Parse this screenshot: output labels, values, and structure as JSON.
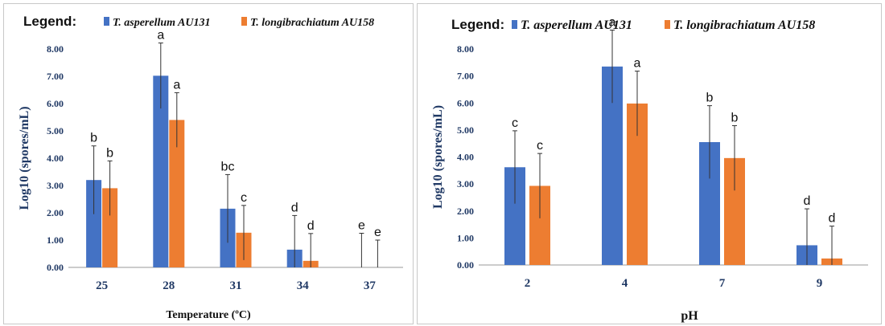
{
  "colors": {
    "series1": "#4472c4",
    "series2": "#ed7d31",
    "axis": "#1f3864",
    "error": "#333333"
  },
  "chart_data": [
    {
      "type": "bar",
      "legend_title": "Legend:",
      "legend_placement": "top",
      "categories": [
        "25",
        "28",
        "31",
        "34",
        "37"
      ],
      "series": [
        {
          "name": "T. asperellum AU131",
          "values": [
            3.2,
            7.02,
            2.15,
            0.65,
            0.0
          ],
          "errors": [
            1.25,
            1.2,
            1.25,
            1.25,
            1.25
          ],
          "labels": [
            "b",
            "a",
            "bc",
            "d",
            "e"
          ]
        },
        {
          "name": "T. longibrachiatum AU158",
          "values": [
            2.9,
            5.4,
            1.27,
            0.24,
            0.0
          ],
          "errors": [
            1.0,
            1.0,
            1.0,
            1.0,
            1.0
          ],
          "labels": [
            "b",
            "a",
            "c",
            "d",
            "e"
          ]
        }
      ],
      "ylabel": "Log10 (spores/mL)",
      "xlabel": "Temperature (ºC)",
      "ylim": [
        0,
        8
      ],
      "yticks": [
        "0.00",
        "1.00",
        "2.00",
        "3.00",
        "4.00",
        "5.00",
        "6.00",
        "7.00",
        "8.00"
      ],
      "grid": false
    },
    {
      "type": "bar",
      "legend_title": "Legend:",
      "legend_placement": "top",
      "categories": [
        "2",
        "4",
        "7",
        "9"
      ],
      "series": [
        {
          "name": "T. asperellum AU131",
          "values": [
            3.62,
            7.35,
            4.55,
            0.73
          ],
          "errors": [
            1.35,
            1.35,
            1.35,
            1.35
          ],
          "labels": [
            "c",
            "a",
            "b",
            "d"
          ]
        },
        {
          "name": "T. longibrachiatum AU158",
          "values": [
            2.93,
            5.98,
            3.96,
            0.24
          ],
          "errors": [
            1.2,
            1.2,
            1.2,
            1.2
          ],
          "labels": [
            "c",
            "a",
            "b",
            "d"
          ]
        }
      ],
      "ylabel": "Log10 (spores/mL)",
      "xlabel": "pH",
      "ylim": [
        0,
        8
      ],
      "yticks": [
        "0.00",
        "1.00",
        "2.00",
        "3.00",
        "4.00",
        "5.00",
        "6.00",
        "7.00",
        "8.00"
      ],
      "grid": false
    }
  ]
}
